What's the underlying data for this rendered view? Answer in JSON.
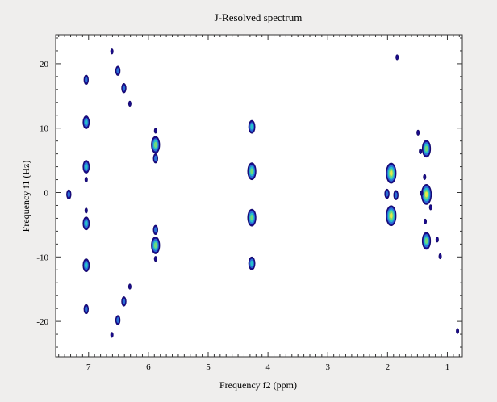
{
  "chart_data": {
    "type": "contour",
    "title": "J-Resolved spectrum",
    "xlabel": "Frequency f2 (ppm)",
    "ylabel": "Frequency f1 (Hz)",
    "xlim": [
      7.55,
      0.75
    ],
    "ylim": [
      -25.5,
      24.5
    ],
    "x_reversed": true,
    "x_ticks": [
      7,
      6,
      5,
      4,
      3,
      2,
      1
    ],
    "y_ticks": [
      20,
      10,
      0,
      -10,
      -20
    ],
    "grid": false,
    "legend": "none",
    "colormap": [
      "#1a0a8c",
      "#2a6fd6",
      "#27c1c9",
      "#74d97a",
      "#e6e84a"
    ],
    "peaks": [
      {
        "x": 7.33,
        "y": -0.3,
        "level": 1
      },
      {
        "x": 7.04,
        "y": 17.5,
        "level": 1
      },
      {
        "x": 7.04,
        "y": 10.9,
        "level": 2
      },
      {
        "x": 7.04,
        "y": 4.0,
        "level": 2
      },
      {
        "x": 7.04,
        "y": 2.0,
        "level": 0
      },
      {
        "x": 7.04,
        "y": -2.8,
        "level": 0
      },
      {
        "x": 7.04,
        "y": -4.8,
        "level": 2
      },
      {
        "x": 7.04,
        "y": -11.3,
        "level": 2
      },
      {
        "x": 7.04,
        "y": -18.1,
        "level": 1
      },
      {
        "x": 6.51,
        "y": 18.9,
        "level": 1
      },
      {
        "x": 6.41,
        "y": 16.2,
        "level": 1
      },
      {
        "x": 6.41,
        "y": -16.9,
        "level": 1
      },
      {
        "x": 6.51,
        "y": -19.8,
        "level": 1
      },
      {
        "x": 6.31,
        "y": 13.8,
        "level": 0
      },
      {
        "x": 6.31,
        "y": -14.6,
        "level": 0
      },
      {
        "x": 6.61,
        "y": 21.9,
        "level": 0
      },
      {
        "x": 6.61,
        "y": -22.1,
        "level": 0
      },
      {
        "x": 5.88,
        "y": 9.6,
        "level": 0
      },
      {
        "x": 5.88,
        "y": 7.4,
        "level": 3
      },
      {
        "x": 5.88,
        "y": 5.3,
        "level": 1
      },
      {
        "x": 5.88,
        "y": -5.8,
        "level": 1
      },
      {
        "x": 5.88,
        "y": -8.2,
        "level": 3
      },
      {
        "x": 5.88,
        "y": -10.3,
        "level": 0
      },
      {
        "x": 4.27,
        "y": 10.2,
        "level": 2
      },
      {
        "x": 4.27,
        "y": 3.3,
        "level": 3
      },
      {
        "x": 4.27,
        "y": -3.9,
        "level": 3
      },
      {
        "x": 4.27,
        "y": -11.0,
        "level": 2
      },
      {
        "x": 1.94,
        "y": 3.0,
        "level": 4
      },
      {
        "x": 2.01,
        "y": -0.2,
        "level": 1
      },
      {
        "x": 1.86,
        "y": -0.4,
        "level": 1
      },
      {
        "x": 1.94,
        "y": -3.6,
        "level": 4
      },
      {
        "x": 1.84,
        "y": 21.0,
        "level": 0
      },
      {
        "x": 1.35,
        "y": 6.8,
        "level": 3
      },
      {
        "x": 1.35,
        "y": -0.3,
        "level": 4
      },
      {
        "x": 1.35,
        "y": -7.5,
        "level": 3
      },
      {
        "x": 1.49,
        "y": 9.3,
        "level": 0
      },
      {
        "x": 1.45,
        "y": 6.4,
        "level": 0
      },
      {
        "x": 1.43,
        "y": -0.1,
        "level": 0
      },
      {
        "x": 1.38,
        "y": 2.4,
        "level": 0
      },
      {
        "x": 1.37,
        "y": -4.5,
        "level": 0
      },
      {
        "x": 1.28,
        "y": -2.3,
        "level": 0
      },
      {
        "x": 1.17,
        "y": -7.3,
        "level": 0
      },
      {
        "x": 1.12,
        "y": -9.9,
        "level": 0
      },
      {
        "x": 0.83,
        "y": -21.5,
        "level": 0
      }
    ]
  }
}
